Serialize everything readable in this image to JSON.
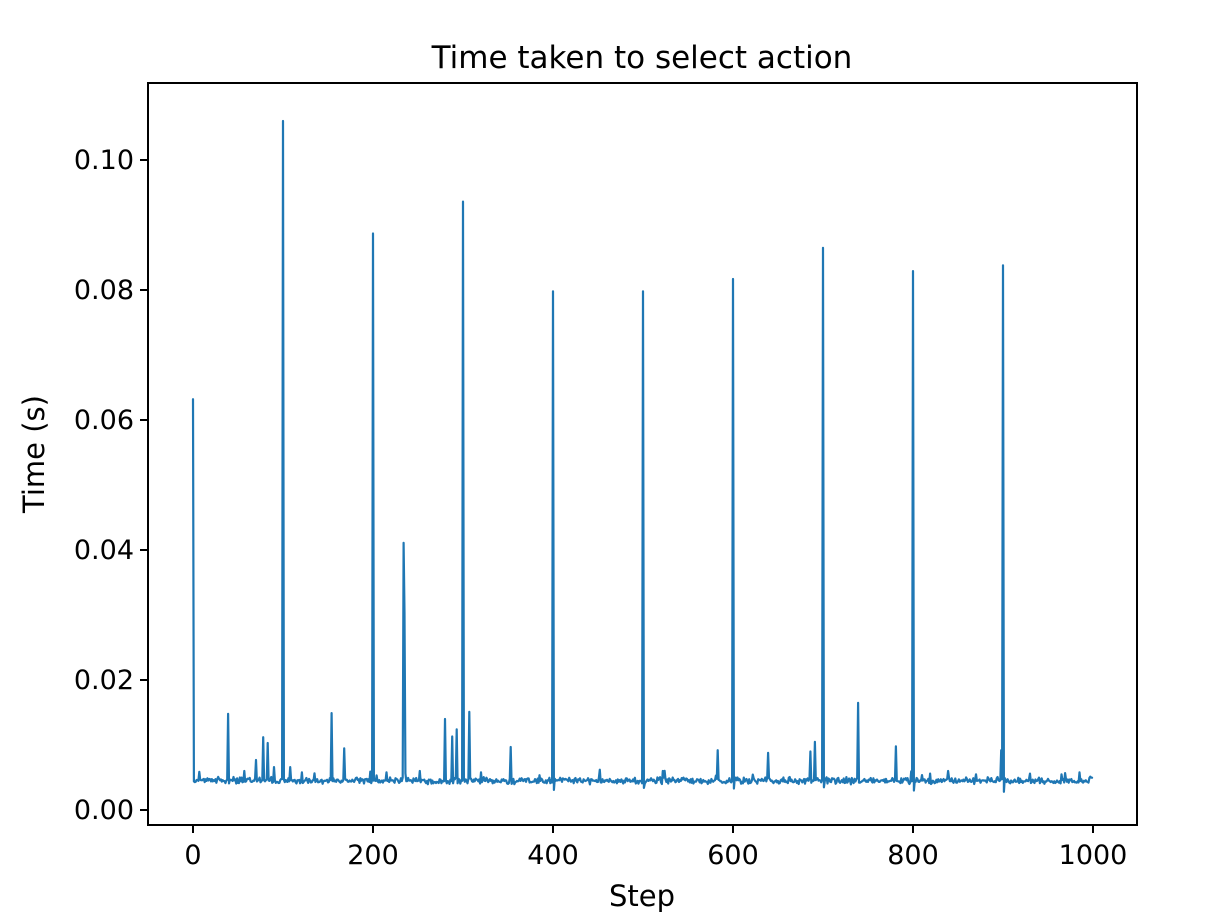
{
  "figure": {
    "background_color": "#ffffff",
    "spine_color": "#000000",
    "text_color": "#000000"
  },
  "chart_data": {
    "type": "line",
    "title": "Time taken to select action",
    "xlabel": "Step",
    "ylabel": "Time (s)",
    "legend": "none",
    "grid": false,
    "line_color": "#1f77b4",
    "n_points": 1000,
    "xlim": [
      -50,
      1049
    ],
    "ylim": [
      -0.0023,
      0.1118
    ],
    "x_ticks": [
      {
        "value": 0,
        "label": "0"
      },
      {
        "value": 200,
        "label": "200"
      },
      {
        "value": 400,
        "label": "400"
      },
      {
        "value": 600,
        "label": "600"
      },
      {
        "value": 800,
        "label": "800"
      },
      {
        "value": 1000,
        "label": "1000"
      }
    ],
    "y_ticks": [
      {
        "value": 0.0,
        "label": "0.00"
      },
      {
        "value": 0.02,
        "label": "0.02"
      },
      {
        "value": 0.04,
        "label": "0.04"
      },
      {
        "value": 0.06,
        "label": "0.06"
      },
      {
        "value": 0.08,
        "label": "0.08"
      },
      {
        "value": 0.1,
        "label": "0.10"
      }
    ],
    "baseline": 0.0045,
    "noise_amplitude": 0.0006,
    "noise_seed": 3,
    "spikes": [
      {
        "step": 0,
        "value": 0.0632
      },
      {
        "step": 39,
        "value": 0.0148
      },
      {
        "step": 57,
        "value": 0.006
      },
      {
        "step": 70,
        "value": 0.0077
      },
      {
        "step": 78,
        "value": 0.0112
      },
      {
        "step": 83,
        "value": 0.0103
      },
      {
        "step": 90,
        "value": 0.0066
      },
      {
        "step": 100,
        "value": 0.106
      },
      {
        "step": 108,
        "value": 0.0066
      },
      {
        "step": 121,
        "value": 0.0058
      },
      {
        "step": 154,
        "value": 0.0149
      },
      {
        "step": 168,
        "value": 0.0095
      },
      {
        "step": 200,
        "value": 0.0887
      },
      {
        "step": 215,
        "value": 0.0058
      },
      {
        "step": 234,
        "value": 0.0411
      },
      {
        "step": 235,
        "value": 0.0303
      },
      {
        "step": 252,
        "value": 0.006
      },
      {
        "step": 280,
        "value": 0.014
      },
      {
        "step": 288,
        "value": 0.0113
      },
      {
        "step": 293,
        "value": 0.0124
      },
      {
        "step": 300,
        "value": 0.0936
      },
      {
        "step": 307,
        "value": 0.0151
      },
      {
        "step": 320,
        "value": 0.0058
      },
      {
        "step": 353,
        "value": 0.0097
      },
      {
        "step": 400,
        "value": 0.0798
      },
      {
        "step": 401,
        "value": 0.0031
      },
      {
        "step": 452,
        "value": 0.0062
      },
      {
        "step": 500,
        "value": 0.0798
      },
      {
        "step": 501,
        "value": 0.0034
      },
      {
        "step": 522,
        "value": 0.006
      },
      {
        "step": 583,
        "value": 0.0092
      },
      {
        "step": 600,
        "value": 0.0817
      },
      {
        "step": 601,
        "value": 0.0033
      },
      {
        "step": 639,
        "value": 0.0088
      },
      {
        "step": 686,
        "value": 0.009
      },
      {
        "step": 691,
        "value": 0.0105
      },
      {
        "step": 700,
        "value": 0.0865
      },
      {
        "step": 701,
        "value": 0.0035
      },
      {
        "step": 739,
        "value": 0.0165
      },
      {
        "step": 781,
        "value": 0.0098
      },
      {
        "step": 800,
        "value": 0.0829
      },
      {
        "step": 801,
        "value": 0.003
      },
      {
        "step": 819,
        "value": 0.0056
      },
      {
        "step": 839,
        "value": 0.006
      },
      {
        "step": 870,
        "value": 0.0055
      },
      {
        "step": 898,
        "value": 0.0092
      },
      {
        "step": 900,
        "value": 0.0838
      },
      {
        "step": 901,
        "value": 0.0028
      },
      {
        "step": 930,
        "value": 0.0056
      },
      {
        "step": 965,
        "value": 0.0055
      }
    ]
  }
}
